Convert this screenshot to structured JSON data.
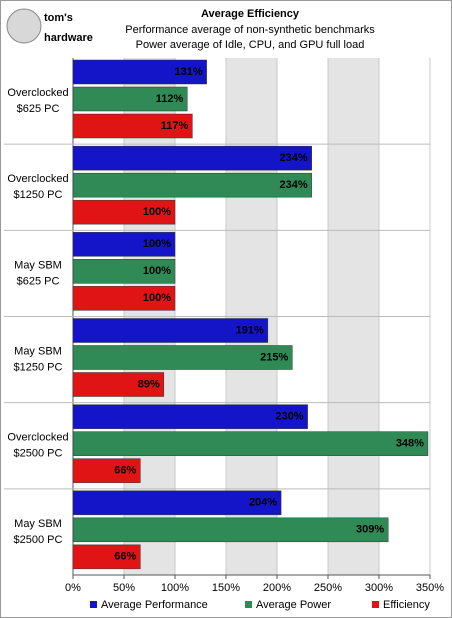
{
  "logo": {
    "line1": "tom's",
    "line2": "hardware"
  },
  "chart_data": {
    "type": "hbar",
    "title": "Average Efficiency",
    "subtitle": [
      "Performance average of non-synthetic benchmarks",
      "Power average of Idle, CPU, and GPU full load"
    ],
    "categories": [
      [
        "Overclocked",
        "$625 PC"
      ],
      [
        "Overclocked",
        "$1250 PC"
      ],
      [
        "May SBM",
        "$625 PC"
      ],
      [
        "May SBM",
        "$1250 PC"
      ],
      [
        "Overclocked",
        "$2500 PC"
      ],
      [
        "May SBM",
        "$2500 PC"
      ]
    ],
    "series": [
      {
        "name": "Average Performance",
        "color": "#1414c8",
        "values": [
          131,
          234,
          100,
          191,
          230,
          204
        ],
        "value_labels": [
          "131%",
          "234%",
          "100%",
          "191%",
          "230%",
          "204%"
        ]
      },
      {
        "name": "Average Power",
        "color": "#2f8a56",
        "values": [
          112,
          234,
          100,
          215,
          348,
          309
        ],
        "value_labels": [
          "112%",
          "234%",
          "100%",
          "215%",
          "348%",
          "309%"
        ]
      },
      {
        "name": "Efficiency",
        "color": "#e01414",
        "values": [
          117,
          100,
          100,
          89,
          66,
          66
        ],
        "value_labels": [
          "117%",
          "100%",
          "100%",
          "89%",
          "66%",
          "66%"
        ]
      }
    ],
    "xlim": [
      0,
      350
    ],
    "xticks": [
      {
        "value": 0,
        "label": "0%"
      },
      {
        "value": 50,
        "label": "50%"
      },
      {
        "value": 100,
        "label": "100%"
      },
      {
        "value": 150,
        "label": "150%"
      },
      {
        "value": 200,
        "label": "200%"
      },
      {
        "value": 250,
        "label": "250%"
      },
      {
        "value": 300,
        "label": "300%"
      },
      {
        "value": 350,
        "label": "350%"
      }
    ],
    "grid": true,
    "legend": "bottom"
  }
}
